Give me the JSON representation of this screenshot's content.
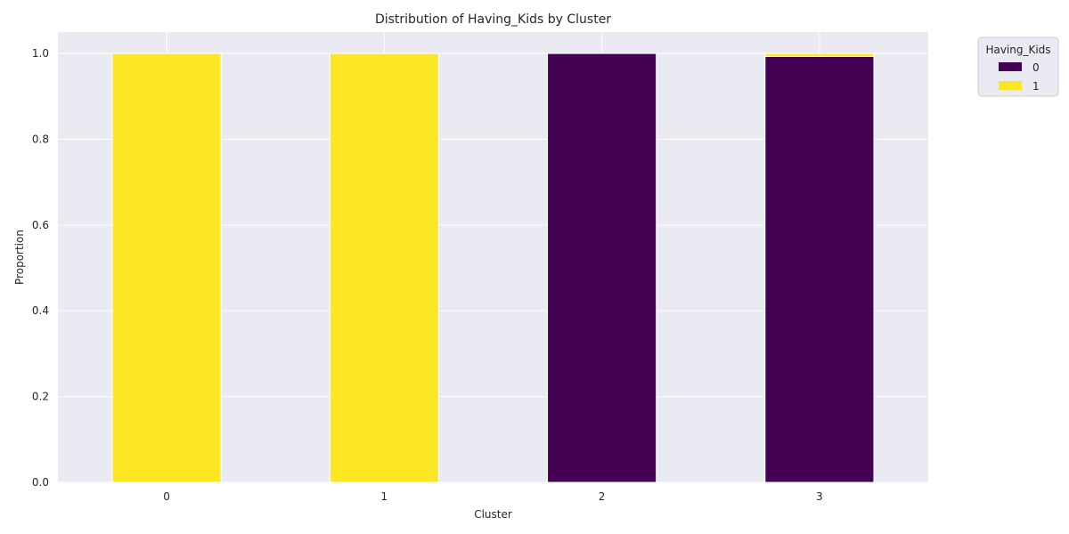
{
  "chart_data": {
    "type": "bar",
    "stacked": true,
    "title": "Distribution of Having_Kids by Cluster",
    "xlabel": "Cluster",
    "ylabel": "Proportion",
    "categories": [
      "0",
      "1",
      "2",
      "3"
    ],
    "ylim": [
      0,
      1.05
    ],
    "yticks": [
      "0.0",
      "0.2",
      "0.4",
      "0.6",
      "0.8",
      "1.0"
    ],
    "grid": true,
    "legend": {
      "title": "Having_Kids",
      "placement": "upper-right-outside"
    },
    "series": [
      {
        "name": "0",
        "color": "#440154",
        "values": [
          0.0,
          0.0,
          1.0,
          0.993
        ]
      },
      {
        "name": "1",
        "color": "#fde725",
        "values": [
          1.0,
          1.0,
          0.0,
          0.007
        ]
      }
    ],
    "background": "#eaeaf2",
    "gridcolor": "#ffffff"
  }
}
